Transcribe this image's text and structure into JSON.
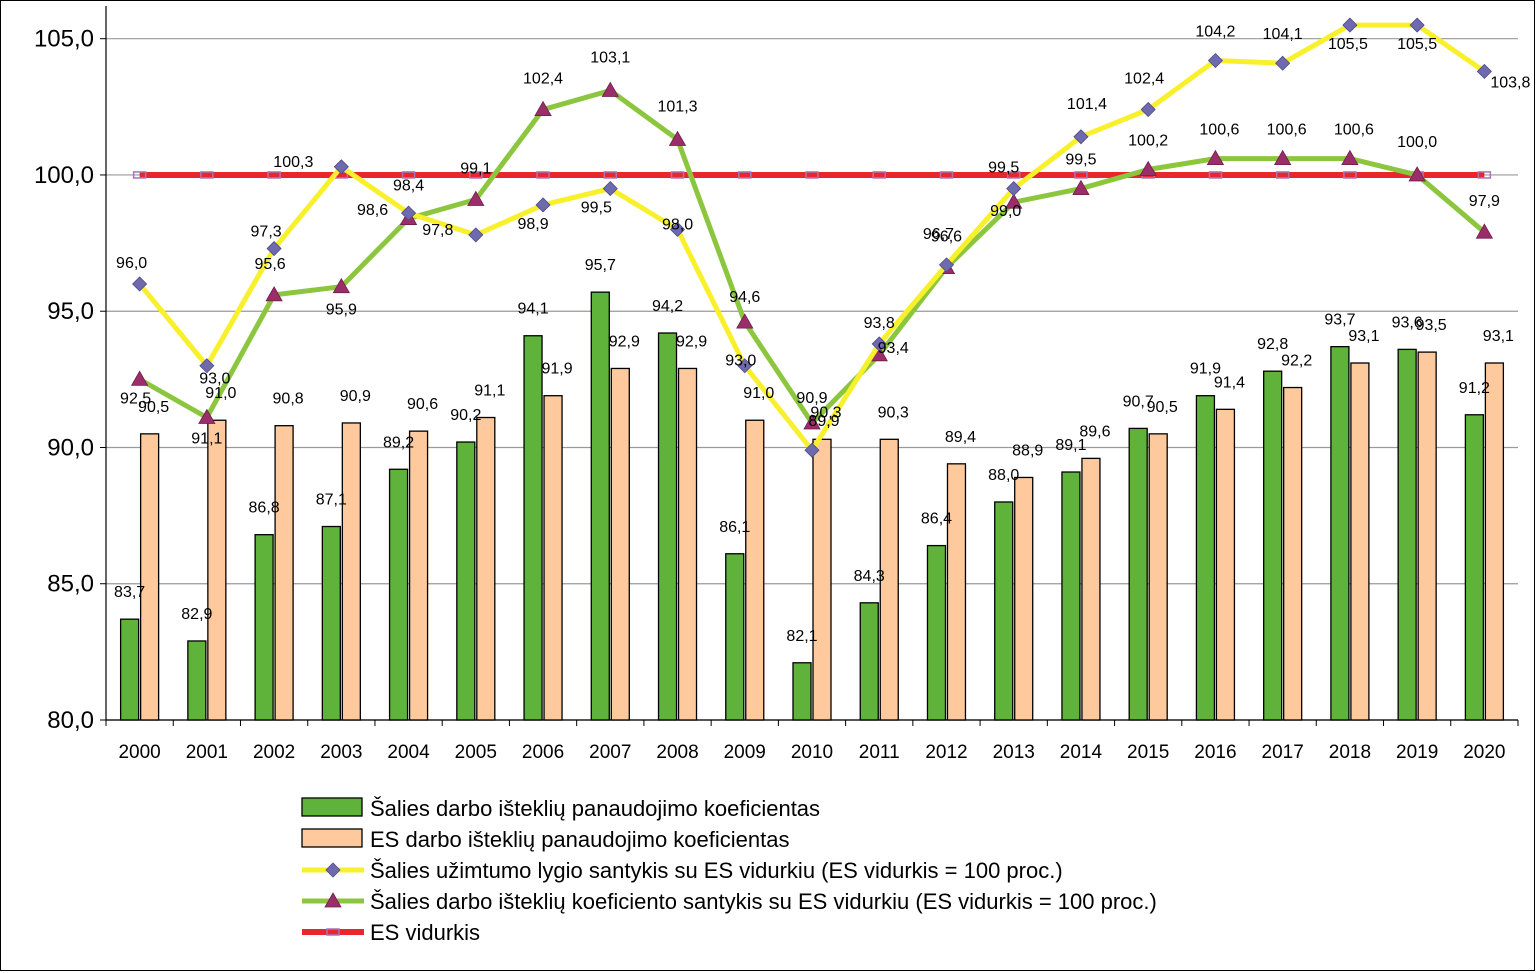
{
  "chart_data": {
    "type": "bar",
    "categories": [
      "2000",
      "2001",
      "2002",
      "2003",
      "2004",
      "2005",
      "2006",
      "2007",
      "2008",
      "2009",
      "2010",
      "2011",
      "2012",
      "2013",
      "2014",
      "2015",
      "2016",
      "2017",
      "2018",
      "2019",
      "2020"
    ],
    "ylim": [
      80,
      105
    ],
    "yticks": [
      "80,0",
      "85,0",
      "90,0",
      "95,0",
      "100,0",
      "105,0"
    ],
    "ytick_values": [
      80,
      85,
      90,
      95,
      100,
      105
    ],
    "grid": true,
    "legend_position": "bottom",
    "series": [
      {
        "name": "Šalies darbo išteklių panaudojimo koeficientas",
        "kind": "bar",
        "color": "#5fb33a",
        "values": [
          83.7,
          82.9,
          86.8,
          87.1,
          89.2,
          90.2,
          94.1,
          95.7,
          94.2,
          86.1,
          82.1,
          84.3,
          86.4,
          88.0,
          89.1,
          90.7,
          91.9,
          92.8,
          93.7,
          93.6,
          91.2
        ],
        "labels": [
          "83,7",
          "82,9",
          "86,8",
          "87,1",
          "89,2",
          "90,2",
          "94,1",
          "95,7",
          "94,2",
          "86,1",
          "82,1",
          "84,3",
          "86,4",
          "88,0",
          "89,1",
          "90,7",
          "91,9",
          "92,8",
          "93,7",
          "93,6",
          "91,2"
        ]
      },
      {
        "name": "ES darbo išteklių panaudojimo koeficientas",
        "kind": "bar",
        "color": "#fdc99d",
        "values": [
          90.5,
          91.0,
          90.8,
          90.9,
          90.6,
          91.1,
          91.9,
          92.9,
          92.9,
          91.0,
          90.3,
          90.3,
          89.4,
          88.9,
          89.6,
          90.5,
          91.4,
          92.2,
          93.1,
          93.5,
          93.1
        ],
        "labels": [
          "90,5",
          "91,0",
          "90,8",
          "90,9",
          "90,6",
          "91,1",
          "91,9",
          "92,9",
          "92,9",
          "91,0",
          "90,3",
          "90,3",
          "89,4",
          "88,9",
          "89,6",
          "90,5",
          "91,4",
          "92,2",
          "93,1",
          "93,5",
          "93,1"
        ]
      },
      {
        "name": "Šalies užimtumo  lygio santykis su ES vidurkiu (ES vidurkis = 100 proc.)",
        "kind": "line",
        "color": "#f7f02a",
        "marker": "diamond",
        "marker_color": "#6f6aad",
        "values": [
          96.0,
          93.0,
          97.3,
          100.3,
          98.6,
          97.8,
          98.9,
          99.5,
          98.0,
          93.0,
          89.9,
          93.8,
          96.7,
          99.5,
          101.4,
          102.4,
          104.2,
          104.1,
          105.5,
          105.5,
          103.8
        ],
        "labels": [
          "96,0",
          "93,0",
          "97,3",
          "100,3",
          "98,6",
          "97,8",
          "98,9",
          "99,5",
          "98,0",
          "93,0",
          "89,9",
          "93,8",
          "96,7",
          "99,5",
          "101,4",
          "102,4",
          "104,2",
          "104,1",
          "105,5",
          "105,5",
          "103,8"
        ]
      },
      {
        "name": "Šalies darbo išteklių koeficiento santykis su ES vidurkiu (ES vidurkis = 100 proc.)",
        "kind": "line",
        "color": "#8cc63e",
        "marker": "triangle",
        "marker_color": "#9b2d6a",
        "values": [
          92.5,
          91.1,
          95.6,
          95.9,
          98.4,
          99.1,
          102.4,
          103.1,
          101.3,
          94.6,
          90.9,
          93.4,
          96.6,
          99.0,
          99.5,
          100.2,
          100.6,
          100.6,
          100.6,
          100.0,
          97.9
        ],
        "labels": [
          "92,5",
          "91,1",
          "95,6",
          "95,9",
          "98,4",
          "99,1",
          "102,4",
          "103,1",
          "101,3",
          "94,6",
          "90,9",
          "93,4",
          "96,6",
          "99,0",
          "99,5",
          "100,2",
          "100,6",
          "100,6",
          "100,6",
          "100,0",
          "97,9"
        ]
      },
      {
        "name": "ES  vidurkis",
        "kind": "line",
        "color": "#e9262c",
        "marker": "rect",
        "marker_color": "#a874b8",
        "values": [
          100,
          100,
          100,
          100,
          100,
          100,
          100,
          100,
          100,
          100,
          100,
          100,
          100,
          100,
          100,
          100,
          100,
          100,
          100,
          100,
          100
        ]
      }
    ]
  }
}
